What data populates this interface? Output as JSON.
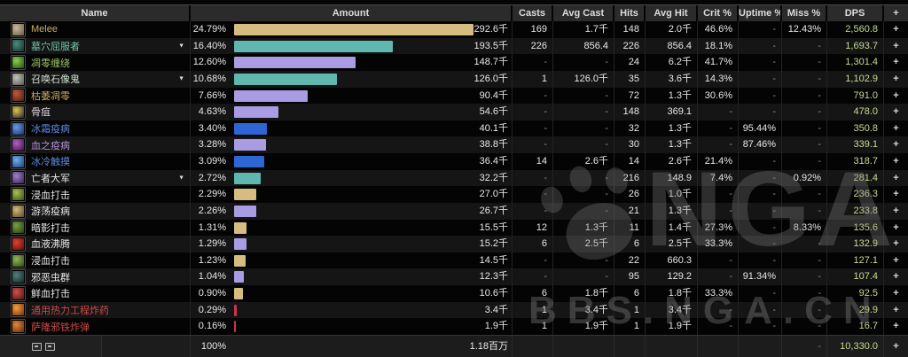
{
  "table": {
    "columns": [
      "Name",
      "Amount",
      "Casts",
      "Avg Cast",
      "Hits",
      "Avg Hit",
      "Crit %",
      "Uptime %",
      "Miss %",
      "DPS",
      "+"
    ],
    "max_percent": 24.79,
    "plus_label": "+",
    "expand_arrow": "▼",
    "rows": [
      {
        "name": "Melee",
        "name_color": "gold",
        "icon": [
          "#c9b89a",
          "#6b5a42"
        ],
        "expandable": false,
        "pct": "24.79%",
        "amount": "292.6千",
        "casts": "169",
        "avg_cast": "1.7千",
        "hits": "148",
        "avg_hit": "2.0千",
        "crit": "46.6%",
        "uptime": "-",
        "miss": "12.43%",
        "dps": "2,560.8",
        "bar": "gold"
      },
      {
        "name": "墓穴屈服者",
        "name_color": "teal",
        "icon": [
          "#4a8a7a",
          "#12302c"
        ],
        "expandable": true,
        "pct": "16.40%",
        "amount": "193.5千",
        "casts": "226",
        "avg_cast": "856.4",
        "hits": "226",
        "avg_hit": "856.4",
        "crit": "18.1%",
        "uptime": "-",
        "miss": "-",
        "dps": "1,693.7",
        "bar": "teal"
      },
      {
        "name": "凋零缠绕",
        "name_color": "green",
        "icon": [
          "#8ad04a",
          "#1e4a14"
        ],
        "expandable": false,
        "pct": "12.60%",
        "amount": "148.7千",
        "casts": "-",
        "avg_cast": "-",
        "hits": "24",
        "avg_hit": "6.2千",
        "crit": "41.7%",
        "uptime": "-",
        "miss": "-",
        "dps": "1,301.4",
        "bar": "purple"
      },
      {
        "name": "召唤石像鬼",
        "name_color": "pale",
        "icon": [
          "#c2c2b8",
          "#565650"
        ],
        "expandable": true,
        "pct": "10.68%",
        "amount": "126.0千",
        "casts": "1",
        "avg_cast": "126.0千",
        "hits": "35",
        "avg_hit": "3.6千",
        "crit": "14.3%",
        "uptime": "-",
        "miss": "-",
        "dps": "1,102.9",
        "bar": "teal"
      },
      {
        "name": "枯萎凋零",
        "name_color": "tan",
        "icon": [
          "#c05a3a",
          "#4a1a12"
        ],
        "expandable": false,
        "pct": "7.66%",
        "amount": "90.4千",
        "casts": "-",
        "avg_cast": "-",
        "hits": "72",
        "avg_hit": "1.3千",
        "crit": "30.6%",
        "uptime": "-",
        "miss": "-",
        "dps": "791.0",
        "bar": "purple"
      },
      {
        "name": "骨疽",
        "name_color": "pink",
        "icon": [
          "#d8c84a",
          "#2a1a3a"
        ],
        "expandable": false,
        "pct": "4.63%",
        "amount": "54.6千",
        "casts": "-",
        "avg_cast": "-",
        "hits": "148",
        "avg_hit": "369.1",
        "crit": "-",
        "uptime": "-",
        "miss": "-",
        "dps": "478.0",
        "bar": "purple"
      },
      {
        "name": "冰霜疫病",
        "name_color": "blue",
        "icon": [
          "#6a9ae0",
          "#16306a"
        ],
        "expandable": false,
        "pct": "3.40%",
        "amount": "40.1千",
        "casts": "-",
        "avg_cast": "-",
        "hits": "32",
        "avg_hit": "1.3千",
        "crit": "-",
        "uptime": "95.44%",
        "miss": "-",
        "dps": "350.8",
        "bar": "blue"
      },
      {
        "name": "血之疫病",
        "name_color": "violet",
        "icon": [
          "#b060c0",
          "#3a1246"
        ],
        "expandable": false,
        "pct": "3.28%",
        "amount": "38.8千",
        "casts": "-",
        "avg_cast": "-",
        "hits": "30",
        "avg_hit": "1.3千",
        "crit": "-",
        "uptime": "87.46%",
        "miss": "-",
        "dps": "339.1",
        "bar": "purple"
      },
      {
        "name": "冰冷触摸",
        "name_color": "blue",
        "icon": [
          "#70b0e8",
          "#1a3c7a"
        ],
        "expandable": false,
        "pct": "3.09%",
        "amount": "36.4千",
        "casts": "14",
        "avg_cast": "2.6千",
        "hits": "14",
        "avg_hit": "2.6千",
        "crit": "21.4%",
        "uptime": "-",
        "miss": "-",
        "dps": "318.7",
        "bar": "blue"
      },
      {
        "name": "亡者大军",
        "name_color": "white",
        "icon": [
          "#a080c8",
          "#32204e"
        ],
        "expandable": true,
        "pct": "2.72%",
        "amount": "32.2千",
        "casts": "-",
        "avg_cast": "-",
        "hits": "216",
        "avg_hit": "148.9",
        "crit": "7.4%",
        "uptime": "-",
        "miss": "0.92%",
        "dps": "281.4",
        "bar": "teal"
      },
      {
        "name": "浸血打击",
        "name_color": "white",
        "icon": [
          "#a8c050",
          "#3c4a16"
        ],
        "expandable": false,
        "pct": "2.29%",
        "amount": "27.0千",
        "casts": "-",
        "avg_cast": "-",
        "hits": "26",
        "avg_hit": "1.0千",
        "crit": "-",
        "uptime": "-",
        "miss": "-",
        "dps": "236.3",
        "bar": "gold"
      },
      {
        "name": "游荡疫病",
        "name_color": "white",
        "icon": [
          "#d0b878",
          "#5a4a26"
        ],
        "expandable": false,
        "pct": "2.26%",
        "amount": "26.7千",
        "casts": "-",
        "avg_cast": "-",
        "hits": "21",
        "avg_hit": "1.3千",
        "crit": "-",
        "uptime": "-",
        "miss": "-",
        "dps": "233.8",
        "bar": "purple"
      },
      {
        "name": "暗影打击",
        "name_color": "white",
        "icon": [
          "#78a040",
          "#233c12"
        ],
        "expandable": false,
        "pct": "1.31%",
        "amount": "15.5千",
        "casts": "12",
        "avg_cast": "1.3千",
        "hits": "11",
        "avg_hit": "1.4千",
        "crit": "27.3%",
        "uptime": "-",
        "miss": "8.33%",
        "dps": "135.6",
        "bar": "gold"
      },
      {
        "name": "血液沸腾",
        "name_color": "white",
        "icon": [
          "#e04030",
          "#5a0e0a"
        ],
        "expandable": false,
        "pct": "1.29%",
        "amount": "15.2千",
        "casts": "6",
        "avg_cast": "2.5千",
        "hits": "6",
        "avg_hit": "2.5千",
        "crit": "33.3%",
        "uptime": "-",
        "miss": "-",
        "dps": "132.9",
        "bar": "purple"
      },
      {
        "name": "浸血打击",
        "name_color": "white",
        "icon": [
          "#90b858",
          "#2e4416"
        ],
        "expandable": false,
        "pct": "1.23%",
        "amount": "14.5千",
        "casts": "-",
        "avg_cast": "-",
        "hits": "22",
        "avg_hit": "660.3",
        "crit": "-",
        "uptime": "-",
        "miss": "-",
        "dps": "127.1",
        "bar": "gold"
      },
      {
        "name": "邪恶虫群",
        "name_color": "white",
        "icon": [
          "#50807a",
          "#102826"
        ],
        "expandable": false,
        "pct": "1.04%",
        "amount": "12.3千",
        "casts": "-",
        "avg_cast": "-",
        "hits": "95",
        "avg_hit": "129.2",
        "crit": "-",
        "uptime": "91.34%",
        "miss": "-",
        "dps": "107.4",
        "bar": "purple"
      },
      {
        "name": "鲜血打击",
        "name_color": "white",
        "icon": [
          "#d05048",
          "#4e1410"
        ],
        "expandable": false,
        "pct": "0.90%",
        "amount": "10.6千",
        "casts": "6",
        "avg_cast": "1.8千",
        "hits": "6",
        "avg_hit": "1.8千",
        "crit": "33.3%",
        "uptime": "-",
        "miss": "-",
        "dps": "92.5",
        "bar": "gold"
      },
      {
        "name": "通用热力工程炸药",
        "name_color": "red",
        "icon": [
          "#f0a040",
          "#7a2e0a"
        ],
        "expandable": false,
        "pct": "0.29%",
        "amount": "3.4千",
        "casts": "1",
        "avg_cast": "3.4千",
        "hits": "1",
        "avg_hit": "3.4千",
        "crit": "-",
        "uptime": "-",
        "miss": "-",
        "dps": "29.9",
        "bar": "red"
      },
      {
        "name": "萨隆邪铁炸弹",
        "name_color": "red",
        "icon": [
          "#e08838",
          "#6a240c"
        ],
        "expandable": false,
        "pct": "0.16%",
        "amount": "1.9千",
        "casts": "1",
        "avg_cast": "1.9千",
        "hits": "1",
        "avg_hit": "1.9千",
        "crit": "-",
        "uptime": "-",
        "miss": "-",
        "dps": "16.7",
        "bar": "red"
      }
    ],
    "footer": {
      "percent": "100%",
      "amount": "1.18百万",
      "miss": "-",
      "dps": "10,330.0",
      "plus": "+"
    }
  },
  "colors": {
    "bars": {
      "gold": "#d6bc7e",
      "teal": "#5fb7ae",
      "purple": "#a99ce2",
      "blue": "#2e66d6",
      "red": "#cc3350"
    },
    "names": {
      "gold": "#c9b168",
      "teal": "#6fc8ab",
      "green": "#9dc46a",
      "pale": "#cfe0cf",
      "tan": "#c9a95e",
      "pink": "#ddd2dd",
      "blue": "#5d87e0",
      "violet": "#b78fd6",
      "white": "#e6e6e6",
      "red": "#cc4a4a"
    },
    "dps_text": "#c6db90"
  },
  "watermark": {
    "big_text": "NGA",
    "bottom_text": "BBS.NGA.CN"
  }
}
